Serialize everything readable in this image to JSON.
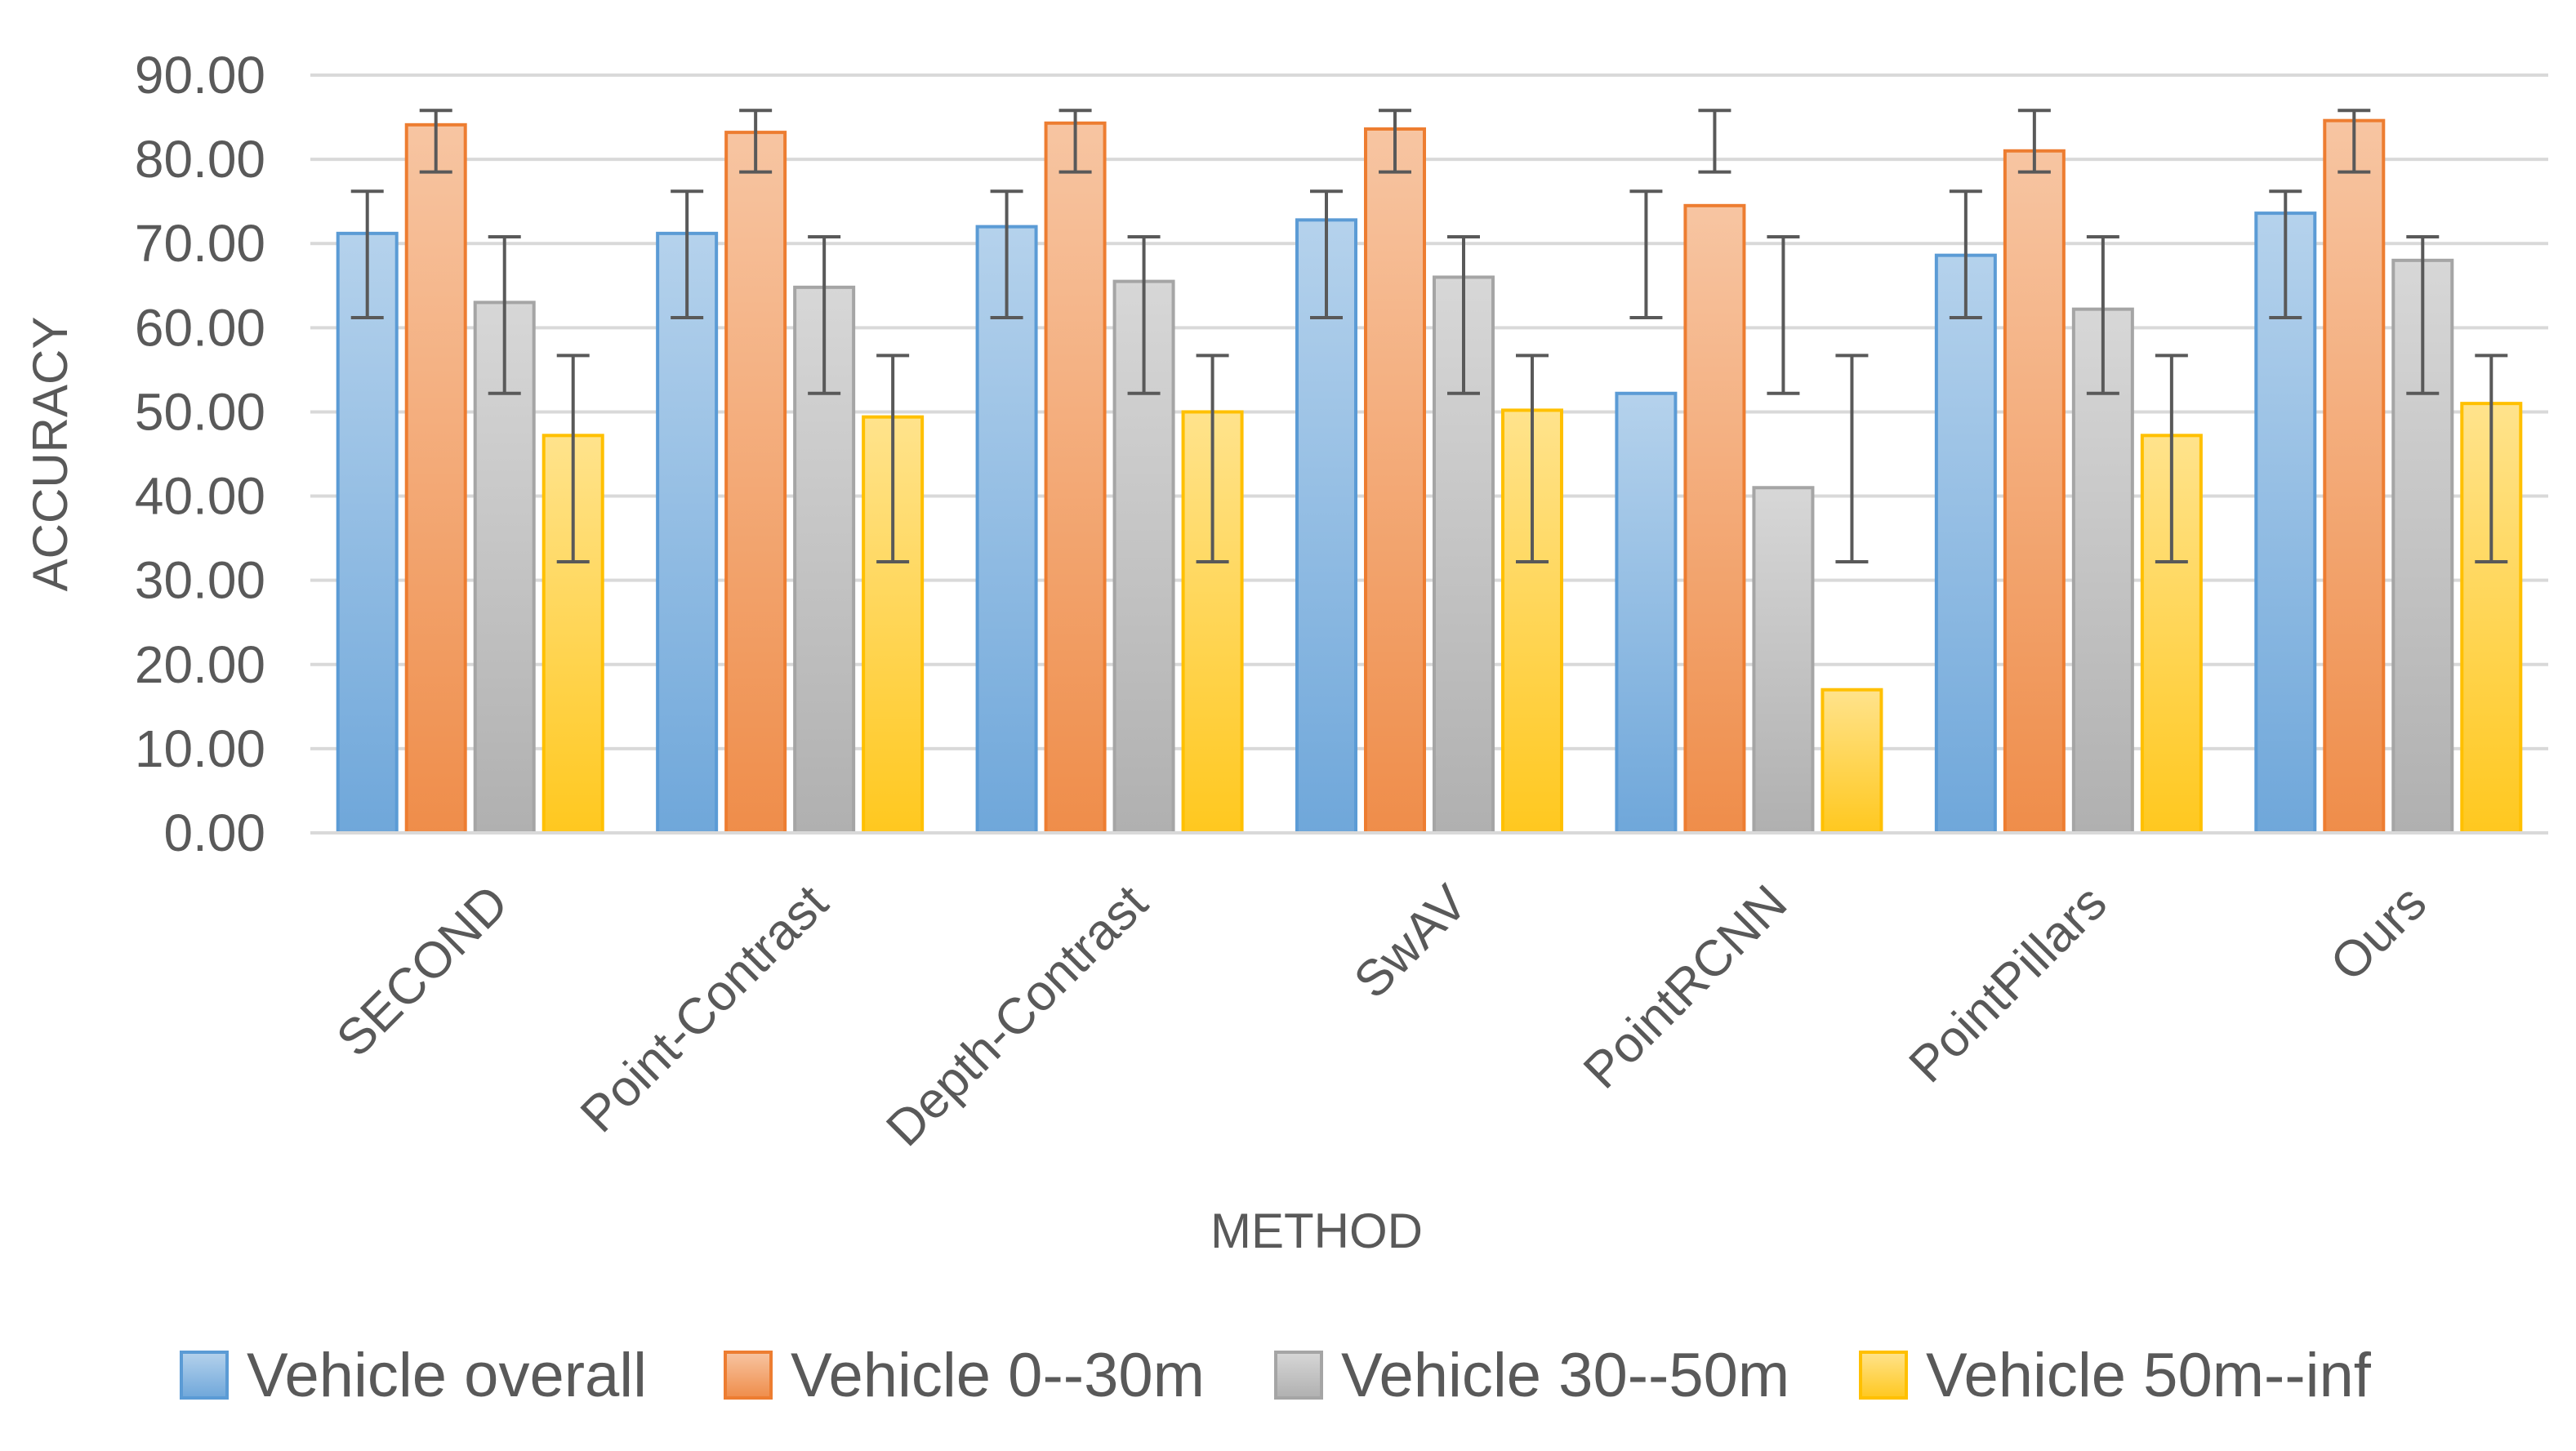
{
  "chart_data": {
    "type": "bar",
    "title": "",
    "xlabel": "METHOD",
    "ylabel": "ACCURACY",
    "ylim": [
      0,
      90
    ],
    "ytick_step": 10,
    "ytick_labels": [
      "0.00",
      "10.00",
      "20.00",
      "30.00",
      "40.00",
      "50.00",
      "60.00",
      "70.00",
      "80.00",
      "90.00"
    ],
    "grid": true,
    "legend_position": "bottom",
    "categories": [
      "SECOND",
      "Point-Contrast",
      "Depth-Contrast",
      "SwAV",
      "PointRCNN",
      "PointPillars",
      "Ours"
    ],
    "series": [
      {
        "name": "Vehicle overall",
        "color": "#5b9bd5",
        "values": [
          71.2,
          71.2,
          72.0,
          72.8,
          52.2,
          68.6,
          73.6
        ],
        "error_low": [
          61.2,
          61.2,
          61.2,
          61.2,
          61.2,
          61.2,
          61.2
        ],
        "error_high": [
          76.2,
          76.2,
          76.2,
          76.2,
          76.2,
          76.2,
          76.2
        ]
      },
      {
        "name": "Vehicle 0--30m",
        "color": "#ed7d31",
        "values": [
          84.1,
          83.2,
          84.3,
          83.6,
          74.5,
          81.0,
          84.6
        ],
        "error_low": [
          78.5,
          78.5,
          78.5,
          78.5,
          78.5,
          78.5,
          78.5
        ],
        "error_high": [
          85.8,
          85.8,
          85.8,
          85.8,
          85.8,
          85.8,
          85.8
        ]
      },
      {
        "name": "Vehicle 30--50m",
        "color": "#a5a5a5",
        "values": [
          63.0,
          64.8,
          65.5,
          66.0,
          41.0,
          62.2,
          68.0
        ],
        "error_low": [
          52.2,
          52.2,
          52.2,
          52.2,
          52.2,
          52.2,
          52.2
        ],
        "error_high": [
          70.8,
          70.8,
          70.8,
          70.8,
          70.8,
          70.8,
          70.8
        ]
      },
      {
        "name": "Vehicle 50m--inf",
        "color": "#ffc000",
        "values": [
          47.2,
          49.4,
          50.0,
          50.2,
          17.0,
          47.2,
          51.0
        ],
        "error_low": [
          32.2,
          32.2,
          32.2,
          32.2,
          32.2,
          32.2,
          32.2
        ],
        "error_high": [
          56.7,
          56.7,
          56.7,
          56.7,
          56.7,
          56.7,
          56.7
        ]
      }
    ]
  }
}
